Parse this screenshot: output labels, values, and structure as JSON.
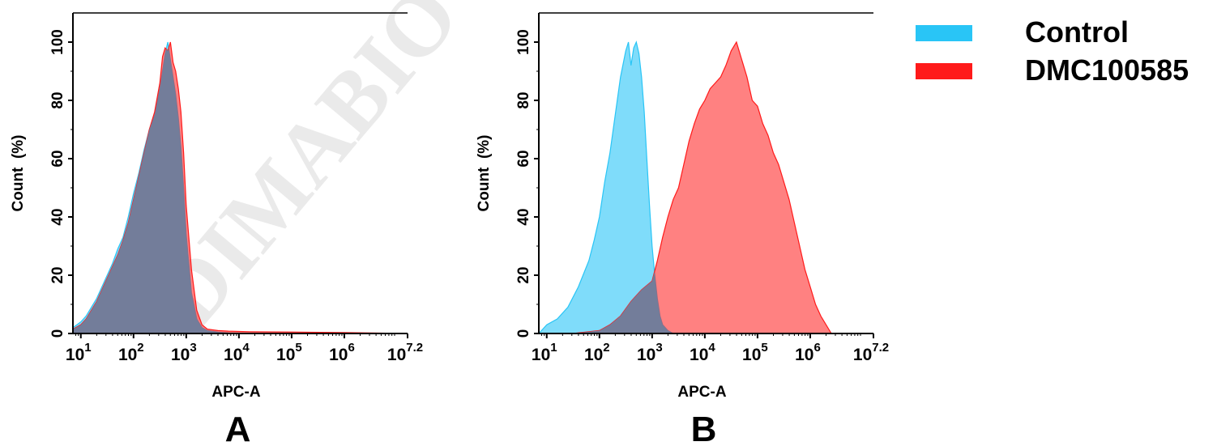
{
  "watermark": "DIMABIO C",
  "legend": [
    {
      "label": "Control",
      "color": "#29c5f6"
    },
    {
      "label": "DMC100585",
      "color": "#ff1a1a"
    }
  ],
  "overlap_color": "#6f7d9c",
  "chart_data": [
    {
      "type": "area",
      "panel_label": "A",
      "xlabel": "APC-A",
      "ylabel": "Count  (%)",
      "xscale": "log",
      "xlim": [
        0.85,
        7.2
      ],
      "ylim": [
        0,
        110
      ],
      "x_ticks": [
        {
          "base": "10",
          "exp": "1",
          "pos": 1
        },
        {
          "base": "10",
          "exp": "2",
          "pos": 2
        },
        {
          "base": "10",
          "exp": "3",
          "pos": 3
        },
        {
          "base": "10",
          "exp": "4",
          "pos": 4
        },
        {
          "base": "10",
          "exp": "5",
          "pos": 5
        },
        {
          "base": "10",
          "exp": "6",
          "pos": 6
        },
        {
          "base": "10",
          "exp": "7.2",
          "pos": 7.2
        }
      ],
      "y_ticks": [
        "0",
        "20",
        "40",
        "60",
        "80",
        "100"
      ],
      "series": [
        {
          "name": "Control",
          "color": "#29c5f6",
          "x": [
            0.85,
            1.0,
            1.1,
            1.2,
            1.3,
            1.4,
            1.5,
            1.6,
            1.7,
            1.8,
            1.9,
            2.0,
            2.1,
            2.2,
            2.3,
            2.4,
            2.5,
            2.55,
            2.6,
            2.65,
            2.7,
            2.75,
            2.8,
            2.85,
            2.9,
            2.95,
            3.0,
            3.1,
            3.2,
            3.3,
            3.4,
            3.6,
            3.8,
            4.2
          ],
          "values": [
            2,
            4,
            6,
            9,
            12,
            16,
            20,
            24,
            29,
            33,
            40,
            48,
            55,
            63,
            70,
            75,
            84,
            90,
            96,
            100,
            94,
            88,
            82,
            74,
            64,
            50,
            34,
            14,
            5,
            2,
            1,
            0.5,
            0.2,
            0
          ]
        },
        {
          "name": "DMC100585",
          "color": "#ff1a1a",
          "x": [
            0.85,
            1.0,
            1.1,
            1.2,
            1.3,
            1.4,
            1.5,
            1.6,
            1.7,
            1.8,
            1.9,
            2.0,
            2.1,
            2.2,
            2.3,
            2.4,
            2.5,
            2.55,
            2.6,
            2.65,
            2.7,
            2.75,
            2.8,
            2.85,
            2.9,
            2.95,
            3.0,
            3.1,
            3.2,
            3.3,
            3.4,
            3.6,
            3.8,
            4.2,
            5.0,
            6.0,
            7.2
          ],
          "values": [
            1.5,
            3,
            5,
            8,
            11,
            15,
            19,
            23,
            27,
            32,
            38,
            46,
            54,
            62,
            70,
            76,
            86,
            95,
            98,
            97,
            100,
            93,
            90,
            84,
            76,
            62,
            44,
            22,
            8,
            3,
            1.5,
            1,
            0.8,
            0.6,
            0.5,
            0.3,
            0
          ]
        }
      ]
    },
    {
      "type": "area",
      "panel_label": "B",
      "xlabel": "APC-A",
      "ylabel": "Count  (%)",
      "xscale": "log",
      "xlim": [
        0.85,
        7.2
      ],
      "ylim": [
        0,
        110
      ],
      "x_ticks": [
        {
          "base": "10",
          "exp": "1",
          "pos": 1
        },
        {
          "base": "10",
          "exp": "2",
          "pos": 2
        },
        {
          "base": "10",
          "exp": "3",
          "pos": 3
        },
        {
          "base": "10",
          "exp": "4",
          "pos": 4
        },
        {
          "base": "10",
          "exp": "5",
          "pos": 5
        },
        {
          "base": "10",
          "exp": "6",
          "pos": 6
        },
        {
          "base": "10",
          "exp": "7.2",
          "pos": 7.2
        }
      ],
      "y_ticks": [
        "0",
        "20",
        "40",
        "60",
        "80",
        "100"
      ],
      "series": [
        {
          "name": "Control",
          "color": "#29c5f6",
          "x": [
            0.85,
            1.0,
            1.2,
            1.4,
            1.6,
            1.8,
            1.9,
            2.0,
            2.1,
            2.2,
            2.3,
            2.4,
            2.5,
            2.55,
            2.6,
            2.65,
            2.7,
            2.75,
            2.8,
            2.85,
            2.9,
            2.95,
            3.0,
            3.05,
            3.1,
            3.15,
            3.2,
            3.3,
            3.4
          ],
          "values": [
            0,
            3,
            5,
            9,
            16,
            25,
            32,
            40,
            52,
            62,
            75,
            88,
            97,
            100,
            92,
            98,
            100,
            96,
            88,
            76,
            60,
            44,
            30,
            20,
            12,
            6,
            3,
            1,
            0
          ]
        },
        {
          "name": "DMC100585",
          "color": "#ff1a1a",
          "x": [
            1.5,
            2.0,
            2.2,
            2.4,
            2.6,
            2.8,
            3.0,
            3.1,
            3.2,
            3.3,
            3.4,
            3.5,
            3.6,
            3.7,
            3.8,
            3.9,
            4.0,
            4.1,
            4.2,
            4.3,
            4.4,
            4.5,
            4.6,
            4.7,
            4.8,
            4.9,
            5.0,
            5.1,
            5.2,
            5.3,
            5.4,
            5.5,
            5.6,
            5.7,
            5.8,
            5.9,
            6.0,
            6.1,
            6.2,
            6.3,
            6.4
          ],
          "values": [
            0,
            1,
            3,
            6,
            11,
            15,
            18,
            25,
            33,
            40,
            46,
            50,
            58,
            66,
            72,
            77,
            80,
            84,
            86,
            88,
            92,
            97,
            100,
            94,
            88,
            80,
            78,
            72,
            68,
            62,
            58,
            52,
            46,
            38,
            30,
            22,
            16,
            10,
            6,
            3,
            0
          ]
        }
      ]
    }
  ]
}
